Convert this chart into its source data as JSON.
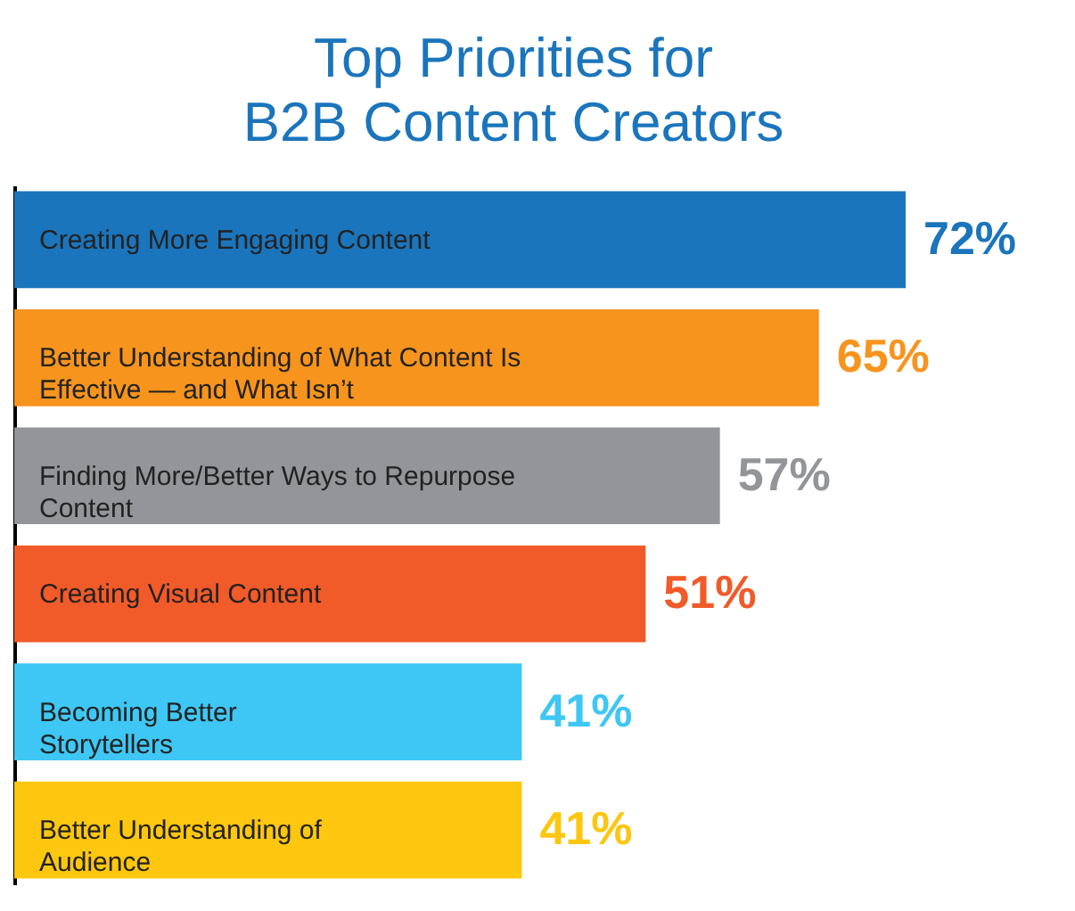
{
  "chart_data": {
    "type": "bar",
    "orientation": "horizontal",
    "title": "Top Priorities for B2B Content Creators",
    "tick_labels": false,
    "grid": false,
    "categories": [
      "Creating More Engaging Content",
      "Better Understanding of What Content Is Effective — and What Isn’t",
      "Finding More/Better Ways to Repurpose Content",
      "Creating Visual Content",
      "Becoming Better Storytellers",
      "Better Understanding of Audience"
    ],
    "values": [
      72,
      65,
      57,
      51,
      41,
      41
    ],
    "colors": [
      "#1b75bc",
      "#f7941d",
      "#939598",
      "#f15a29",
      "#3ec7f4",
      "#fdc60f"
    ],
    "value_labels": [
      "72%",
      "65%",
      "57%",
      "51%",
      "41%",
      "41%"
    ]
  }
}
